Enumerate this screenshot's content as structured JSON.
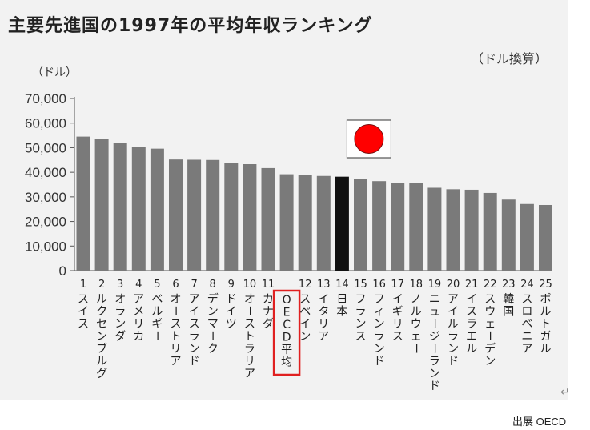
{
  "chart_data": {
    "type": "bar",
    "title": "主要先進国の1997年の平均年収ランキング",
    "unit_note": "（ドル換算）",
    "ylabel": "（ドル）",
    "ylim": [
      0,
      70000
    ],
    "yticks": [
      0,
      10000,
      20000,
      30000,
      40000,
      50000,
      60000,
      70000
    ],
    "ytick_labels": [
      "0",
      "10,000",
      "20,000",
      "30,000",
      "40,000",
      "50,000",
      "60,000",
      "70,000"
    ],
    "grid": false,
    "bars": [
      {
        "rank": "1",
        "name": "スイス",
        "value": 54500,
        "highlight": "none"
      },
      {
        "rank": "2",
        "name": "ルクセンブルグ",
        "value": 53500,
        "highlight": "none"
      },
      {
        "rank": "3",
        "name": "オランダ",
        "value": 51800,
        "highlight": "none"
      },
      {
        "rank": "4",
        "name": "アメリカ",
        "value": 50200,
        "highlight": "none"
      },
      {
        "rank": "5",
        "name": "ベルギー",
        "value": 49600,
        "highlight": "none"
      },
      {
        "rank": "6",
        "name": "オーストリア",
        "value": 45200,
        "highlight": "none"
      },
      {
        "rank": "7",
        "name": "アイスランド",
        "value": 45100,
        "highlight": "none"
      },
      {
        "rank": "8",
        "name": "デンマーク",
        "value": 45000,
        "highlight": "none"
      },
      {
        "rank": "9",
        "name": "ドイツ",
        "value": 43900,
        "highlight": "none"
      },
      {
        "rank": "10",
        "name": "オーストラリア",
        "value": 43300,
        "highlight": "none"
      },
      {
        "rank": "11",
        "name": "カナダ",
        "value": 41700,
        "highlight": "none"
      },
      {
        "rank": "",
        "name": "OECD平均",
        "value": 39200,
        "highlight": "oecd"
      },
      {
        "rank": "12",
        "name": "スペイン",
        "value": 38900,
        "highlight": "none"
      },
      {
        "rank": "13",
        "name": "イタリア",
        "value": 38500,
        "highlight": "none"
      },
      {
        "rank": "14",
        "name": "日本",
        "value": 38200,
        "highlight": "japan"
      },
      {
        "rank": "15",
        "name": "フランス",
        "value": 37200,
        "highlight": "none"
      },
      {
        "rank": "16",
        "name": "フィンランド",
        "value": 36400,
        "highlight": "none"
      },
      {
        "rank": "17",
        "name": "イギリス",
        "value": 35700,
        "highlight": "none"
      },
      {
        "rank": "18",
        "name": "ノルウェー",
        "value": 35500,
        "highlight": "none"
      },
      {
        "rank": "19",
        "name": "ニュージーランド",
        "value": 33700,
        "highlight": "none"
      },
      {
        "rank": "20",
        "name": "アイルランド",
        "value": 33100,
        "highlight": "none"
      },
      {
        "rank": "21",
        "name": "イスラエル",
        "value": 32900,
        "highlight": "none"
      },
      {
        "rank": "22",
        "name": "スウェーデン",
        "value": 31600,
        "highlight": "none"
      },
      {
        "rank": "23",
        "name": "韓国",
        "value": 28900,
        "highlight": "none"
      },
      {
        "rank": "24",
        "name": "スロベニア",
        "value": 27100,
        "highlight": "none"
      },
      {
        "rank": "25",
        "name": "ポルトガル",
        "value": 26700,
        "highlight": "none"
      }
    ]
  },
  "colors": {
    "bar": "#7a7a7a",
    "bar_japan": "#111111",
    "oecd_box": "#e02020",
    "flag_disc": "#ff0000",
    "axis": "#555555",
    "panel": "#f2f2f2"
  },
  "flag_icon": "japan-flag-icon",
  "source_note": "出展 OECD",
  "return_mark": "↵"
}
